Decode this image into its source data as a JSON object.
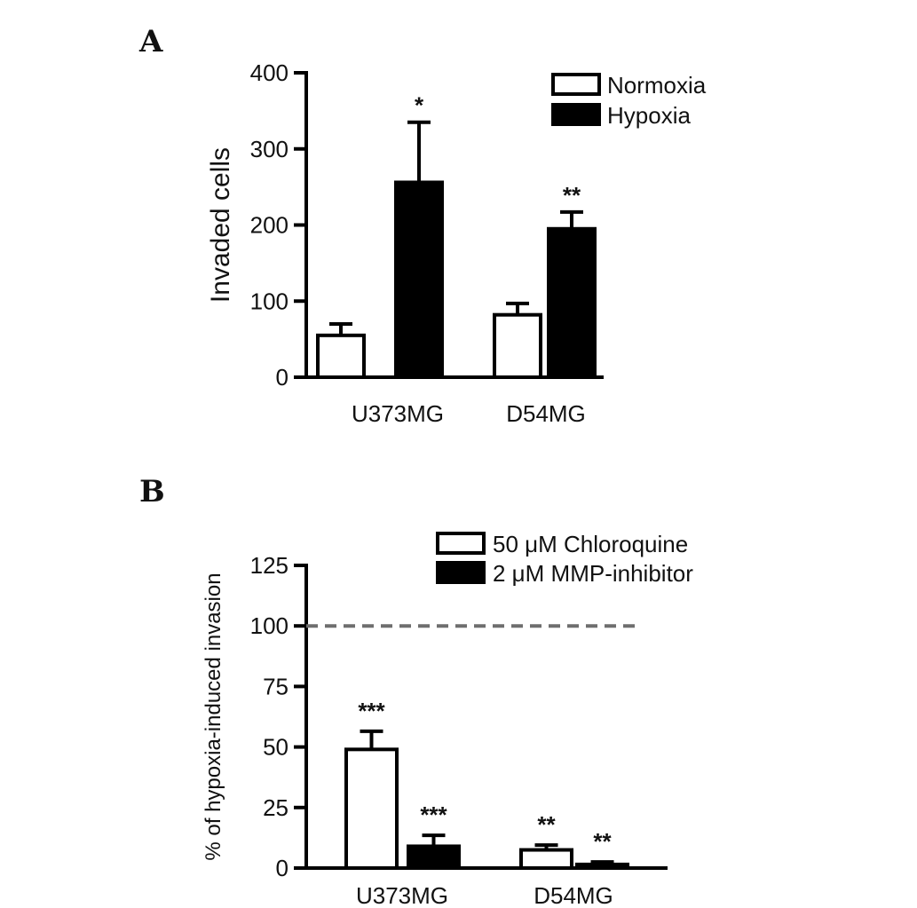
{
  "chart_data": [
    {
      "panel": "A",
      "type": "bar",
      "ylabel": "Invaded cells",
      "ylim": [
        0,
        400
      ],
      "yticks": [
        0,
        100,
        200,
        300,
        400
      ],
      "categories": [
        "U373MG",
        "D54MG"
      ],
      "series": [
        {
          "name": "Normoxia",
          "fill": "#ffffff",
          "values": [
            55,
            82
          ],
          "errors": [
            15,
            15
          ]
        },
        {
          "name": "Hypoxia",
          "fill": "#000000",
          "values": [
            256,
            195
          ],
          "errors": [
            79,
            22
          ]
        }
      ],
      "annotations": [
        {
          "category": "U373MG",
          "series": "Hypoxia",
          "text": "*"
        },
        {
          "category": "D54MG",
          "series": "Hypoxia",
          "text": "**"
        }
      ],
      "legend_position": "top-right",
      "grid": false
    },
    {
      "panel": "B",
      "type": "bar",
      "ylabel": "% of hypoxia-induced invasion",
      "ylim": [
        0,
        125
      ],
      "yticks": [
        0,
        25,
        50,
        75,
        100,
        125
      ],
      "categories": [
        "U373MG",
        "D54MG"
      ],
      "series": [
        {
          "name": "50 μM Chloroquine",
          "fill": "#ffffff",
          "values": [
            49,
            7.5
          ],
          "errors": [
            7.5,
            2
          ]
        },
        {
          "name": "2 μM MMP-inhibitor",
          "fill": "#000000",
          "values": [
            9,
            1.5
          ],
          "errors": [
            4.5,
            1
          ]
        }
      ],
      "reference_line": {
        "y": 100,
        "style": "dashed",
        "color": "#6e6e6e"
      },
      "annotations": [
        {
          "category": "U373MG",
          "series": "50 μM Chloroquine",
          "text": "***"
        },
        {
          "category": "U373MG",
          "series": "2 μM MMP-inhibitor",
          "text": "***"
        },
        {
          "category": "D54MG",
          "series": "50 μM Chloroquine",
          "text": "**"
        },
        {
          "category": "D54MG",
          "series": "2 μM MMP-inhibitor",
          "text": "**"
        }
      ],
      "legend_position": "top-right",
      "grid": false
    }
  ]
}
